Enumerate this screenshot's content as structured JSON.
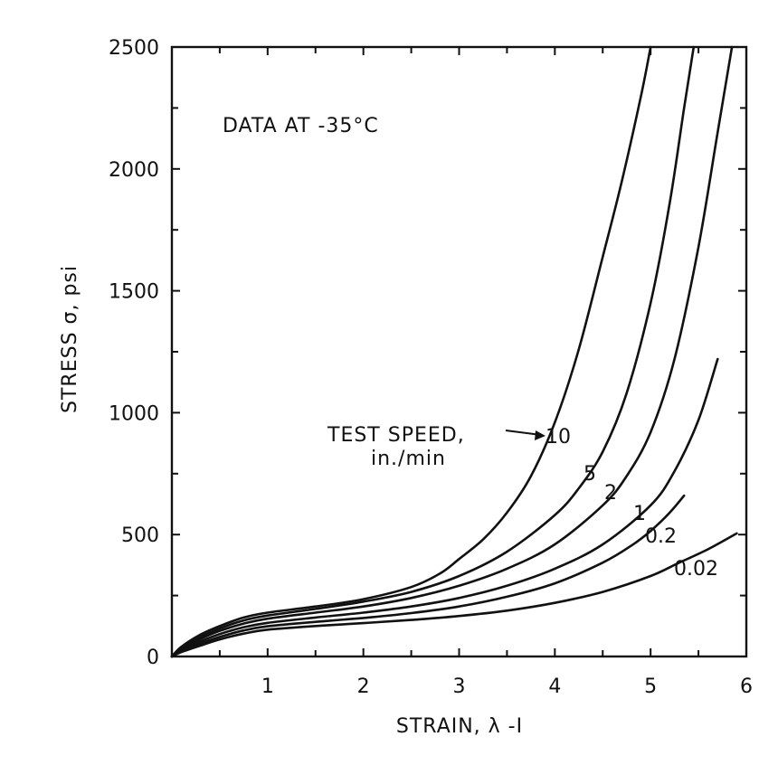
{
  "chart_data": {
    "type": "line",
    "annotation": "DATA AT -35°C",
    "legend_title": [
      "TEST SPEED,",
      "in./min"
    ],
    "xlabel": "STRAIN, λ -I",
    "ylabel": "STRESS σ, psi",
    "xlim": [
      0,
      6
    ],
    "ylim": [
      0,
      2500
    ],
    "x_ticks": [
      1,
      2,
      3,
      4,
      5,
      6
    ],
    "y_ticks": [
      0,
      500,
      1000,
      1500,
      2000,
      2500
    ],
    "x_tick_labels": [
      "1",
      "2",
      "3",
      "4",
      "5",
      "6"
    ],
    "y_tick_labels": [
      "0",
      "500",
      "1000",
      "1500",
      "2000",
      "2500"
    ],
    "grid": false,
    "series": [
      {
        "name": "10",
        "x": [
          0,
          0.1,
          0.3,
          0.5,
          0.75,
          1.0,
          1.5,
          2.0,
          2.5,
          2.8,
          3.0,
          3.25,
          3.5,
          3.75,
          4.0,
          4.25,
          4.5,
          4.7,
          4.9,
          5.0
        ],
        "y": [
          0,
          40,
          90,
          125,
          160,
          180,
          205,
          235,
          285,
          340,
          400,
          480,
          590,
          740,
          960,
          1260,
          1640,
          1950,
          2300,
          2500
        ]
      },
      {
        "name": "5",
        "x": [
          0,
          0.1,
          0.3,
          0.5,
          0.75,
          1.0,
          1.5,
          2.0,
          2.5,
          3.0,
          3.5,
          4.0,
          4.25,
          4.5,
          4.75,
          5.0,
          5.2,
          5.35,
          5.45
        ],
        "y": [
          0,
          35,
          80,
          115,
          148,
          168,
          195,
          225,
          265,
          330,
          430,
          580,
          690,
          840,
          1080,
          1450,
          1860,
          2250,
          2500
        ]
      },
      {
        "name": "2",
        "x": [
          0,
          0.1,
          0.3,
          0.5,
          0.75,
          1.0,
          1.5,
          2.0,
          2.5,
          3.0,
          3.5,
          4.0,
          4.5,
          4.75,
          5.0,
          5.25,
          5.5,
          5.7,
          5.85
        ],
        "y": [
          0,
          30,
          72,
          105,
          135,
          155,
          180,
          205,
          240,
          290,
          360,
          460,
          620,
          740,
          920,
          1220,
          1680,
          2150,
          2500
        ]
      },
      {
        "name": "1",
        "x": [
          0,
          0.1,
          0.3,
          0.5,
          0.75,
          1.0,
          1.5,
          2.0,
          2.5,
          3.0,
          3.5,
          4.0,
          4.5,
          5.0,
          5.25,
          5.5,
          5.7
        ],
        "y": [
          0,
          26,
          62,
          92,
          120,
          138,
          160,
          180,
          205,
          240,
          290,
          360,
          460,
          620,
          760,
          970,
          1220
        ]
      },
      {
        "name": "0.2",
        "x": [
          0,
          0.1,
          0.3,
          0.5,
          0.75,
          1.0,
          1.5,
          2.0,
          2.5,
          3.0,
          3.5,
          4.0,
          4.5,
          4.8,
          5.0,
          5.2,
          5.35
        ],
        "y": [
          0,
          22,
          53,
          80,
          107,
          124,
          142,
          158,
          178,
          205,
          245,
          300,
          385,
          455,
          515,
          590,
          660
        ]
      },
      {
        "name": "0.02",
        "x": [
          0,
          0.1,
          0.3,
          0.5,
          0.75,
          1.0,
          1.5,
          2.0,
          2.5,
          3.0,
          3.5,
          4.0,
          4.5,
          5.0,
          5.3,
          5.6,
          5.9
        ],
        "y": [
          0,
          18,
          45,
          70,
          94,
          110,
          125,
          137,
          150,
          166,
          188,
          220,
          265,
          330,
          385,
          440,
          505
        ]
      }
    ]
  }
}
